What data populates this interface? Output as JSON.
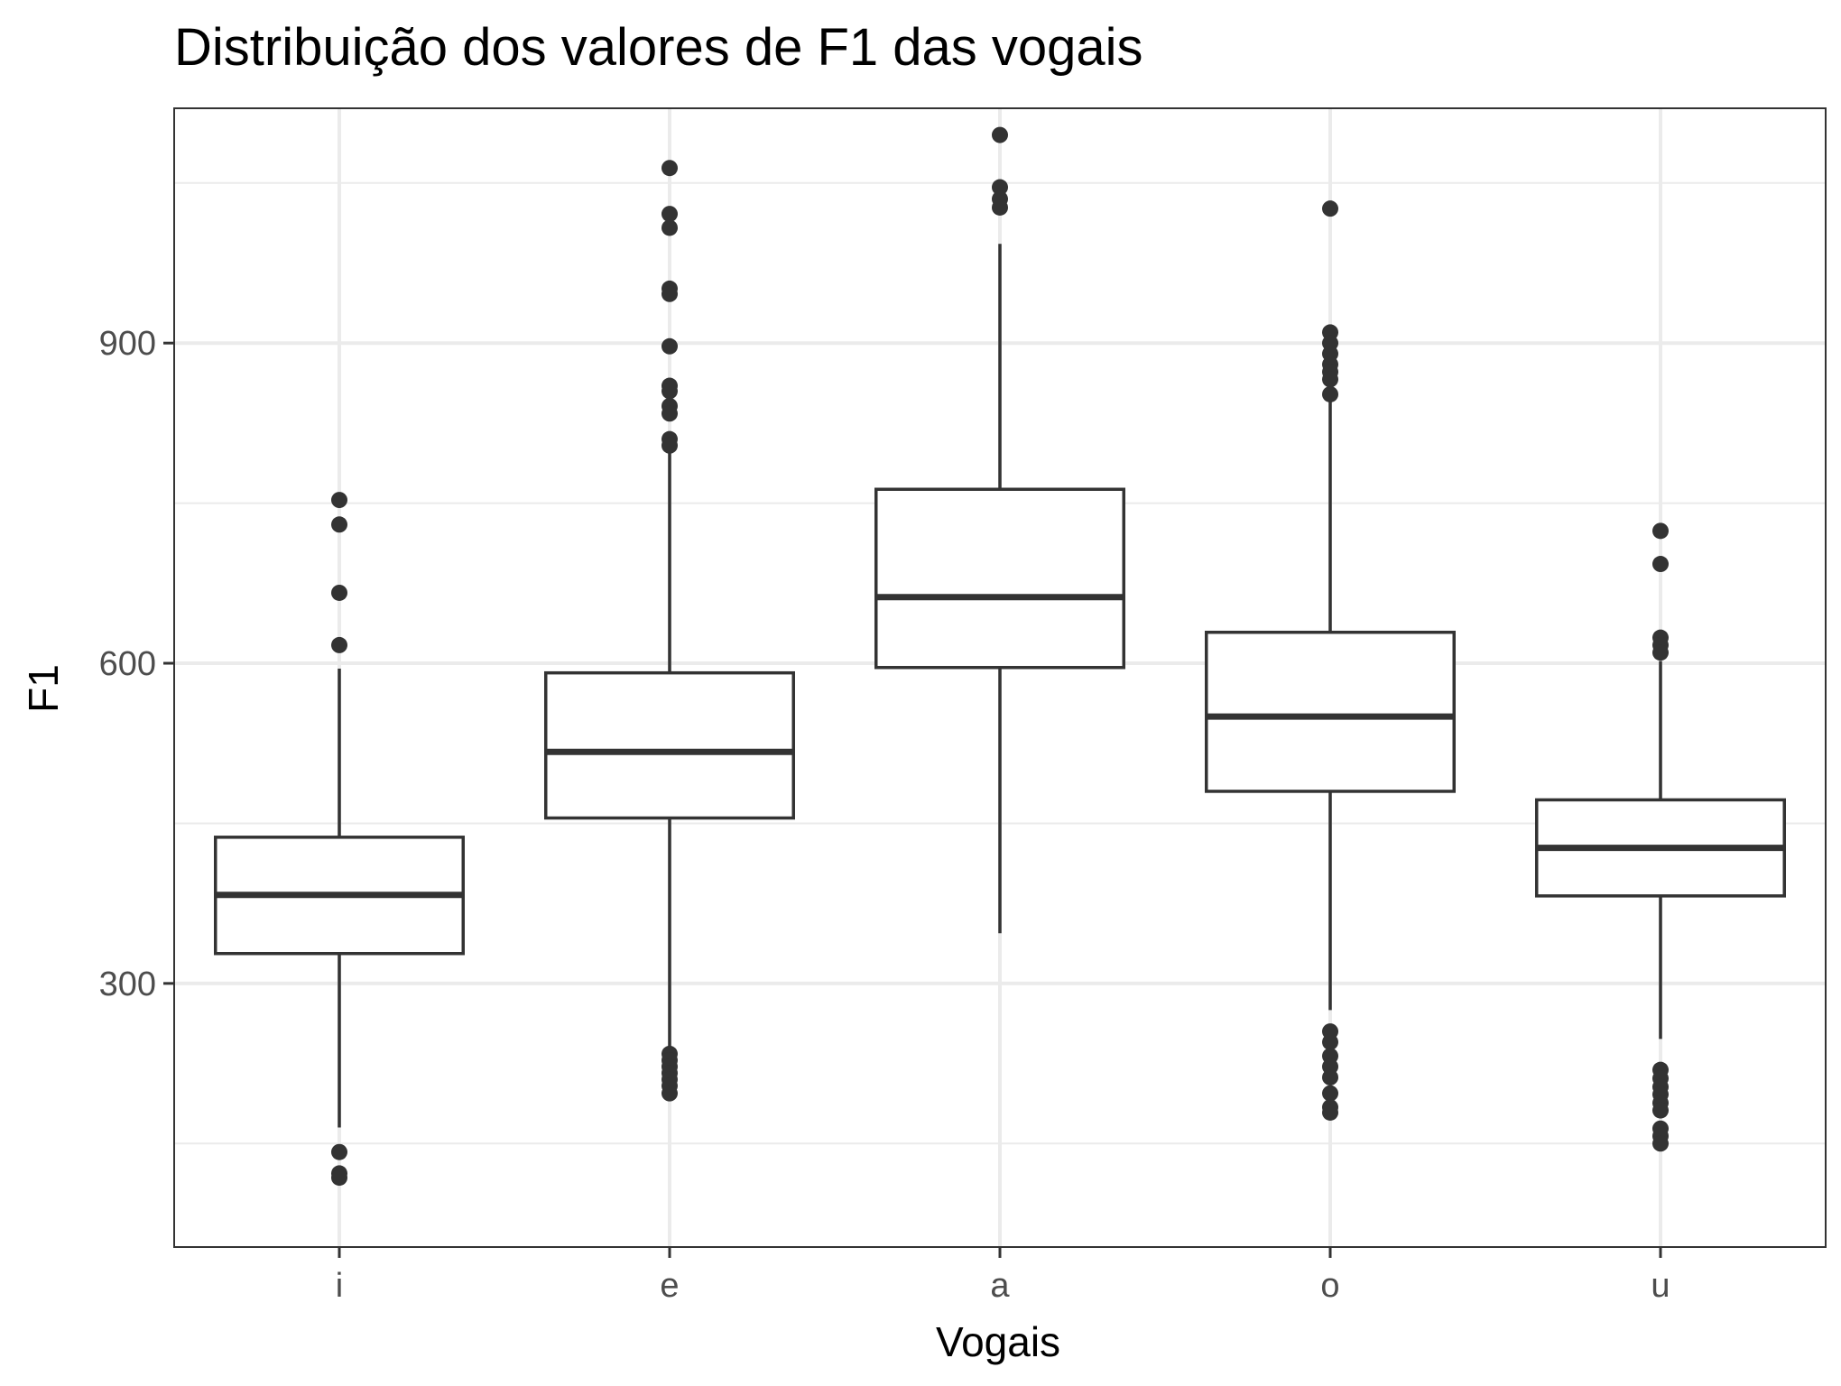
{
  "chart_data": {
    "type": "boxplot",
    "title": "Distribuição dos valores de F1 das vogais",
    "xlabel": "Vogais",
    "ylabel": "F1",
    "categories": [
      "i",
      "e",
      "a",
      "o",
      "u"
    ],
    "y_ticks": [
      300,
      600,
      900
    ],
    "y_minor_ticks": [
      150,
      450,
      750,
      1050
    ],
    "ylim": [
      53,
      1120
    ],
    "grid": true,
    "boxes": [
      {
        "category": "i",
        "lower_whisker": 165,
        "q1": 328,
        "median": 383,
        "q3": 437,
        "upper_whisker": 595,
        "outliers": [
          753,
          730,
          666,
          617,
          142,
          122,
          118
        ]
      },
      {
        "category": "e",
        "lower_whisker": 235,
        "q1": 455,
        "median": 517,
        "q3": 591,
        "upper_whisker": 800,
        "outliers": [
          1064,
          1021,
          1008,
          951,
          946,
          897,
          860,
          855,
          841,
          834,
          810,
          804,
          234,
          228,
          222,
          216,
          210,
          204,
          197
        ]
      },
      {
        "category": "a",
        "lower_whisker": 347,
        "q1": 596,
        "median": 662,
        "q3": 763,
        "upper_whisker": 993,
        "outliers": [
          1095,
          1046,
          1035,
          1027
        ]
      },
      {
        "category": "o",
        "lower_whisker": 275,
        "q1": 480,
        "median": 550,
        "q3": 629,
        "upper_whisker": 847,
        "outliers": [
          1026,
          910,
          900,
          890,
          880,
          873,
          866,
          852,
          255,
          245,
          232,
          222,
          212,
          197,
          184,
          179
        ]
      },
      {
        "category": "u",
        "lower_whisker": 248,
        "q1": 382,
        "median": 427,
        "q3": 472,
        "upper_whisker": 602,
        "outliers": [
          724,
          693,
          624,
          617,
          610,
          219,
          211,
          203,
          196,
          188,
          181,
          164,
          157,
          150
        ]
      }
    ],
    "colors": {
      "box_stroke": "#333333",
      "box_fill": "#ffffff",
      "grid": "#ebebeb",
      "panel_border": "#333333",
      "tick_label": "#4d4d4d"
    }
  }
}
